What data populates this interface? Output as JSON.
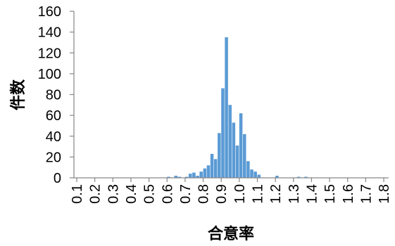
{
  "chart_data": {
    "type": "bar",
    "title": "",
    "xlabel": "合意率",
    "ylabel": "件数",
    "ylim": [
      0,
      160
    ],
    "xlim": [
      0.08,
      1.82
    ],
    "y_ticks": [
      0,
      20,
      40,
      60,
      80,
      100,
      120,
      140,
      160
    ],
    "x_tick_labels": [
      "0.1",
      "0.2",
      "0.3",
      "0.4",
      "0.5",
      "0.6",
      "0.7",
      "0.8",
      "0.9",
      "1.0",
      "1.1",
      "1.2",
      "1.3",
      "1.4",
      "1.5",
      "1.6",
      "1.7",
      "1.8"
    ],
    "bin_width": 0.02,
    "grid": false,
    "legend": "none",
    "bar_color": "#5b9bd5",
    "series": [
      {
        "x": [
          0.61,
          0.65,
          0.67,
          0.71,
          0.73,
          0.75,
          0.77,
          0.79,
          0.81,
          0.83,
          0.85,
          0.87,
          0.89,
          0.91,
          0.93,
          0.95,
          0.97,
          0.99,
          1.01,
          1.03,
          1.05,
          1.07,
          1.09,
          1.11,
          1.21,
          1.33,
          1.37
        ],
        "values": [
          1,
          2,
          1,
          1,
          4,
          5,
          2,
          6,
          9,
          12,
          23,
          18,
          43,
          86,
          135,
          70,
          53,
          31,
          62,
          42,
          16,
          8,
          6,
          3,
          2,
          1,
          1
        ]
      }
    ]
  }
}
